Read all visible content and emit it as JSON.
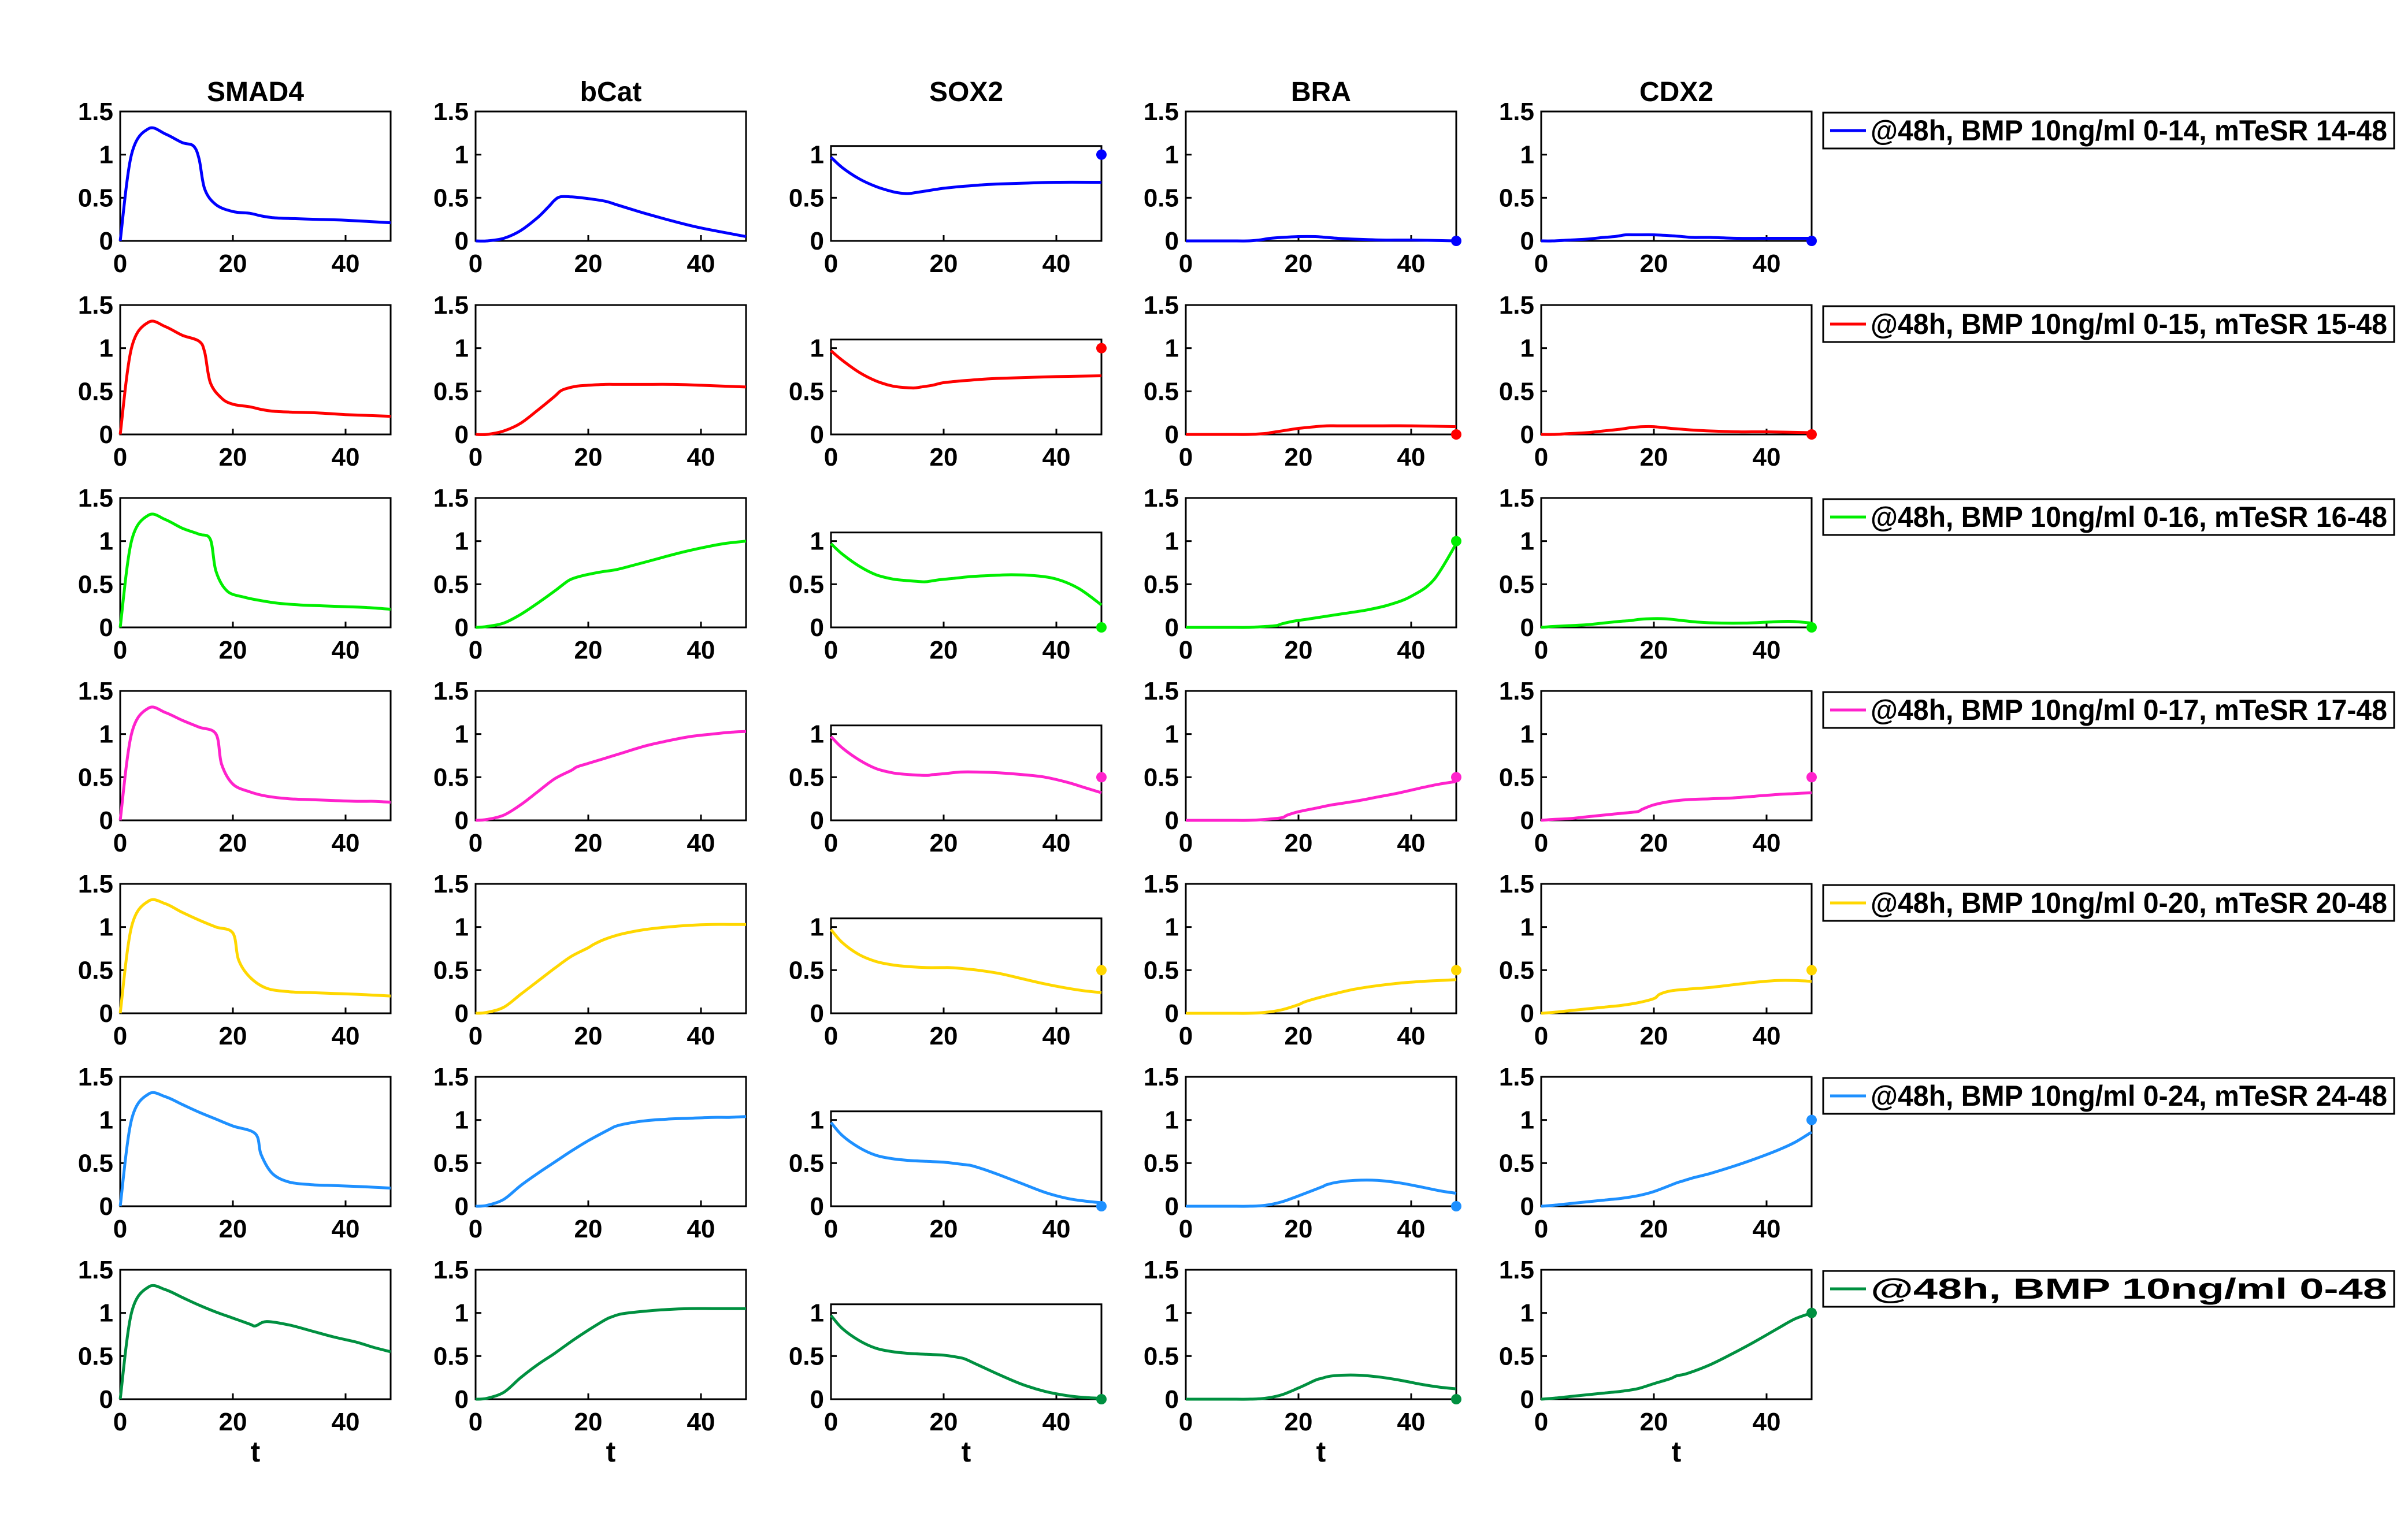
{
  "chart_data": {
    "type": "line",
    "grid": false,
    "xlabel": "t",
    "xlim": [
      0,
      48
    ],
    "x_ticks": [
      0,
      20,
      40
    ],
    "columns": [
      {
        "name": "SMAD4",
        "ylim": [
          0,
          1.5
        ],
        "y_ticks": [
          0,
          0.5,
          1,
          1.5
        ]
      },
      {
        "name": "bCat",
        "ylim": [
          0,
          1.5
        ],
        "y_ticks": [
          0,
          0.5,
          1,
          1.5
        ]
      },
      {
        "name": "SOX2",
        "ylim": [
          0,
          1.1
        ],
        "y_ticks": [
          0,
          0.5,
          1
        ]
      },
      {
        "name": "BRA",
        "ylim": [
          0,
          1.5
        ],
        "y_ticks": [
          0,
          0.5,
          1,
          1.5
        ]
      },
      {
        "name": "CDX2",
        "ylim": [
          0,
          1.5
        ],
        "y_ticks": [
          0,
          0.5,
          1,
          1.5
        ]
      }
    ],
    "rows": [
      {
        "name": "@48h, BMP 10ng/ml 0-14, mTeSR 14-48",
        "color": "#0000ff",
        "x": [
          0,
          2,
          5,
          8,
          11,
          13,
          14,
          15,
          17,
          20,
          23,
          25,
          27,
          30,
          35,
          40,
          48
        ],
        "series": {
          "SMAD4": [
            0,
            1.0,
            1.3,
            1.24,
            1.14,
            1.1,
            0.95,
            0.6,
            0.42,
            0.34,
            0.32,
            0.29,
            0.27,
            0.26,
            0.25,
            0.24,
            0.21
          ],
          "bCat": [
            0,
            0.0,
            0.03,
            0.12,
            0.27,
            0.4,
            0.47,
            0.51,
            0.51,
            0.49,
            0.46,
            0.42,
            0.38,
            0.32,
            0.23,
            0.15,
            0.05
          ],
          "SOX2": [
            0.97,
            0.85,
            0.72,
            0.63,
            0.57,
            0.55,
            0.55,
            0.56,
            0.58,
            0.61,
            0.63,
            0.64,
            0.65,
            0.66,
            0.67,
            0.68,
            0.68
          ],
          "BRA": [
            0,
            0,
            0,
            0,
            0,
            0.01,
            0.02,
            0.03,
            0.04,
            0.05,
            0.05,
            0.04,
            0.03,
            0.02,
            0.01,
            0.01,
            0.0
          ],
          "CDX2": [
            0,
            0,
            0.01,
            0.02,
            0.04,
            0.05,
            0.06,
            0.07,
            0.07,
            0.07,
            0.06,
            0.05,
            0.04,
            0.04,
            0.03,
            0.03,
            0.03
          ]
        },
        "endpoints": {
          "SOX2": 1.0,
          "BRA": 0.0,
          "CDX2": 0.0
        }
      },
      {
        "name": "@48h, BMP 10ng/ml 0-15, mTeSR 15-48",
        "color": "#ff0000",
        "x": [
          0,
          2,
          5,
          8,
          11,
          14,
          15,
          16,
          18,
          20,
          23,
          25,
          27,
          30,
          35,
          40,
          48
        ],
        "series": {
          "SMAD4": [
            0,
            1.0,
            1.3,
            1.25,
            1.15,
            1.08,
            0.95,
            0.6,
            0.42,
            0.35,
            0.32,
            0.29,
            0.27,
            0.26,
            0.25,
            0.23,
            0.21
          ],
          "bCat": [
            0,
            0.0,
            0.04,
            0.13,
            0.28,
            0.44,
            0.5,
            0.53,
            0.56,
            0.57,
            0.58,
            0.58,
            0.58,
            0.58,
            0.58,
            0.57,
            0.55
          ],
          "SOX2": [
            0.97,
            0.86,
            0.72,
            0.62,
            0.56,
            0.54,
            0.54,
            0.55,
            0.57,
            0.6,
            0.62,
            0.63,
            0.64,
            0.65,
            0.66,
            0.67,
            0.68
          ],
          "BRA": [
            0,
            0,
            0,
            0,
            0,
            0.01,
            0.02,
            0.03,
            0.05,
            0.07,
            0.09,
            0.1,
            0.1,
            0.1,
            0.1,
            0.1,
            0.09
          ],
          "CDX2": [
            0,
            0,
            0.01,
            0.02,
            0.04,
            0.06,
            0.07,
            0.08,
            0.09,
            0.09,
            0.07,
            0.06,
            0.05,
            0.04,
            0.03,
            0.03,
            0.02
          ]
        },
        "endpoints": {
          "SOX2": 1.0,
          "BRA": 0.0,
          "CDX2": 0.0
        }
      },
      {
        "name": "@48h, BMP 10ng/ml 0-16, mTeSR 16-48",
        "color": "#00ee00",
        "x": [
          0,
          2,
          5,
          8,
          11,
          14,
          16,
          17,
          19,
          22,
          25,
          28,
          32,
          36,
          40,
          44,
          48
        ],
        "series": {
          "SMAD4": [
            0,
            1.0,
            1.3,
            1.25,
            1.15,
            1.08,
            1.02,
            0.65,
            0.42,
            0.35,
            0.31,
            0.28,
            0.26,
            0.25,
            0.24,
            0.23,
            0.21
          ],
          "bCat": [
            0,
            0.01,
            0.05,
            0.15,
            0.28,
            0.42,
            0.52,
            0.56,
            0.6,
            0.64,
            0.67,
            0.72,
            0.79,
            0.86,
            0.92,
            0.97,
            1.0
          ],
          "SOX2": [
            0.97,
            0.85,
            0.71,
            0.61,
            0.56,
            0.54,
            0.53,
            0.53,
            0.55,
            0.57,
            0.59,
            0.6,
            0.61,
            0.6,
            0.56,
            0.45,
            0.26
          ],
          "BRA": [
            0,
            0,
            0,
            0,
            0,
            0.01,
            0.02,
            0.04,
            0.07,
            0.1,
            0.13,
            0.16,
            0.2,
            0.26,
            0.36,
            0.55,
            0.97
          ],
          "CDX2": [
            0,
            0.01,
            0.02,
            0.03,
            0.05,
            0.07,
            0.08,
            0.09,
            0.1,
            0.1,
            0.08,
            0.06,
            0.05,
            0.05,
            0.06,
            0.07,
            0.05
          ]
        },
        "endpoints": {
          "SOX2": 0.0,
          "BRA": 1.0,
          "CDX2": 0.0
        }
      },
      {
        "name": "@48h, BMP 10ng/ml 0-17, mTeSR 17-48",
        "color": "#ff22cc",
        "x": [
          0,
          2,
          5,
          8,
          11,
          14,
          17,
          18,
          20,
          23,
          26,
          30,
          34,
          38,
          42,
          45,
          48
        ],
        "series": {
          "SMAD4": [
            0,
            1.0,
            1.3,
            1.25,
            1.16,
            1.08,
            1.0,
            0.65,
            0.42,
            0.33,
            0.28,
            0.25,
            0.24,
            0.23,
            0.22,
            0.22,
            0.21
          ],
          "bCat": [
            0,
            0.01,
            0.06,
            0.18,
            0.33,
            0.48,
            0.58,
            0.62,
            0.66,
            0.72,
            0.78,
            0.86,
            0.92,
            0.97,
            1.0,
            1.02,
            1.03
          ],
          "SOX2": [
            0.97,
            0.84,
            0.7,
            0.6,
            0.55,
            0.53,
            0.52,
            0.53,
            0.54,
            0.56,
            0.56,
            0.55,
            0.53,
            0.5,
            0.44,
            0.38,
            0.32
          ],
          "BRA": [
            0,
            0,
            0,
            0,
            0,
            0.01,
            0.03,
            0.06,
            0.1,
            0.14,
            0.18,
            0.22,
            0.27,
            0.32,
            0.38,
            0.42,
            0.45
          ],
          "CDX2": [
            0,
            0.01,
            0.02,
            0.04,
            0.06,
            0.08,
            0.1,
            0.13,
            0.18,
            0.22,
            0.24,
            0.25,
            0.26,
            0.28,
            0.3,
            0.31,
            0.32
          ]
        },
        "endpoints": {
          "SOX2": 0.5,
          "BRA": 0.5,
          "CDX2": 0.5
        }
      },
      {
        "name": "@48h, BMP 10ng/ml 0-20, mTeSR 20-48",
        "color": "#ffd700",
        "x": [
          0,
          2,
          5,
          8,
          11,
          14,
          17,
          20,
          21,
          23,
          26,
          30,
          34,
          38,
          42,
          45,
          48
        ],
        "series": {
          "SMAD4": [
            0,
            1.0,
            1.3,
            1.27,
            1.17,
            1.08,
            1.0,
            0.93,
            0.62,
            0.42,
            0.29,
            0.25,
            0.24,
            0.23,
            0.22,
            0.21,
            0.2
          ],
          "bCat": [
            0,
            0.01,
            0.07,
            0.22,
            0.37,
            0.52,
            0.66,
            0.76,
            0.8,
            0.86,
            0.92,
            0.97,
            1.0,
            1.02,
            1.03,
            1.03,
            1.03
          ],
          "SOX2": [
            0.97,
            0.82,
            0.68,
            0.6,
            0.56,
            0.54,
            0.53,
            0.53,
            0.53,
            0.52,
            0.5,
            0.46,
            0.4,
            0.34,
            0.29,
            0.26,
            0.24
          ],
          "BRA": [
            0,
            0,
            0,
            0,
            0,
            0.01,
            0.04,
            0.1,
            0.13,
            0.17,
            0.22,
            0.28,
            0.32,
            0.35,
            0.37,
            0.38,
            0.39
          ],
          "CDX2": [
            0,
            0.01,
            0.03,
            0.05,
            0.07,
            0.09,
            0.12,
            0.17,
            0.22,
            0.26,
            0.28,
            0.3,
            0.33,
            0.36,
            0.38,
            0.38,
            0.37
          ]
        },
        "endpoints": {
          "SOX2": 0.5,
          "BRA": 0.5,
          "CDX2": 0.5
        }
      },
      {
        "name": "@48h, BMP 10ng/ml 0-24, mTeSR 24-48",
        "color": "#1e90ff",
        "x": [
          0,
          2,
          5,
          8,
          11,
          14,
          17,
          20,
          24,
          25,
          27,
          30,
          34,
          38,
          42,
          45,
          48
        ],
        "series": {
          "SMAD4": [
            0,
            1.0,
            1.3,
            1.27,
            1.18,
            1.09,
            1.01,
            0.93,
            0.84,
            0.6,
            0.38,
            0.28,
            0.25,
            0.24,
            0.23,
            0.22,
            0.21
          ],
          "bCat": [
            0,
            0.01,
            0.08,
            0.24,
            0.38,
            0.51,
            0.64,
            0.76,
            0.9,
            0.93,
            0.96,
            0.99,
            1.01,
            1.02,
            1.03,
            1.03,
            1.04
          ],
          "SOX2": [
            0.97,
            0.82,
            0.68,
            0.59,
            0.55,
            0.53,
            0.52,
            0.51,
            0.48,
            0.47,
            0.43,
            0.36,
            0.26,
            0.16,
            0.09,
            0.06,
            0.04
          ],
          "BRA": [
            0,
            0,
            0,
            0,
            0,
            0.01,
            0.05,
            0.12,
            0.22,
            0.25,
            0.28,
            0.3,
            0.3,
            0.27,
            0.22,
            0.18,
            0.15
          ],
          "CDX2": [
            0,
            0.01,
            0.03,
            0.05,
            0.07,
            0.09,
            0.12,
            0.17,
            0.27,
            0.29,
            0.33,
            0.38,
            0.46,
            0.55,
            0.65,
            0.74,
            0.86
          ]
        },
        "endpoints": {
          "SOX2": 0.0,
          "BRA": 0.0,
          "CDX2": 1.0
        }
      },
      {
        "name": "@48h, BMP 10ng/ml 0-48",
        "color": "#009040",
        "x": [
          0,
          2,
          5,
          8,
          11,
          14,
          17,
          20,
          23,
          24,
          26,
          30,
          34,
          38,
          42,
          45,
          48
        ],
        "series": {
          "SMAD4": [
            0,
            1.0,
            1.3,
            1.27,
            1.18,
            1.09,
            1.01,
            0.94,
            0.87,
            0.85,
            0.9,
            0.86,
            0.79,
            0.72,
            0.66,
            0.6,
            0.55
          ],
          "bCat": [
            0,
            0.01,
            0.08,
            0.25,
            0.4,
            0.53,
            0.67,
            0.8,
            0.92,
            0.95,
            0.99,
            1.02,
            1.04,
            1.05,
            1.05,
            1.05,
            1.05
          ],
          "SOX2": [
            0.97,
            0.82,
            0.68,
            0.59,
            0.55,
            0.53,
            0.52,
            0.51,
            0.48,
            0.46,
            0.4,
            0.28,
            0.17,
            0.09,
            0.04,
            0.02,
            0.01
          ],
          "BRA": [
            0,
            0,
            0,
            0,
            0,
            0.01,
            0.05,
            0.13,
            0.22,
            0.24,
            0.27,
            0.28,
            0.26,
            0.22,
            0.17,
            0.14,
            0.12
          ],
          "CDX2": [
            0,
            0.01,
            0.03,
            0.05,
            0.07,
            0.09,
            0.12,
            0.18,
            0.24,
            0.27,
            0.3,
            0.4,
            0.53,
            0.67,
            0.82,
            0.93,
            1.0
          ]
        },
        "endpoints": {
          "SOX2": 0.0,
          "BRA": 0.0,
          "CDX2": 1.0
        }
      }
    ]
  }
}
